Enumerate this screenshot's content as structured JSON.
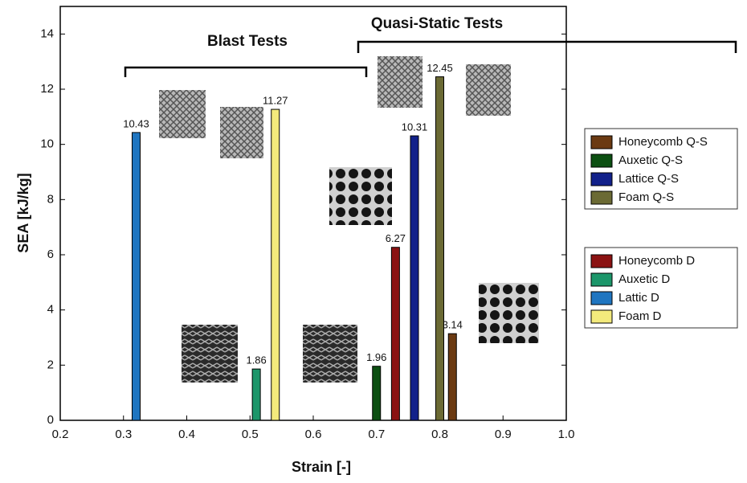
{
  "chart_data": {
    "type": "bar",
    "x_label": "Strain [-]",
    "y_label": "SEA [kJ/kg]",
    "annotations": [
      "Blast Tests",
      "Quasi-Static Tests"
    ],
    "xlim": [
      0.2,
      1.0
    ],
    "xticks": [
      0.2,
      0.3,
      0.4,
      0.5,
      0.6,
      0.7,
      0.8,
      0.9,
      {
        "value": 1.0,
        "label": "1.0"
      }
    ],
    "ylim": [
      0,
      15
    ],
    "yticks": [
      0,
      2,
      4,
      6,
      8,
      10,
      12,
      14
    ],
    "series": [
      {
        "name": "Honeycomb Q-S",
        "color": "#6b3a12",
        "x": [
          0.82
        ],
        "values": [
          3.14
        ]
      },
      {
        "name": "Auxetic Q-S",
        "color": "#0c4f12",
        "x": [
          0.7
        ],
        "values": [
          1.96
        ]
      },
      {
        "name": "Lattice Q-S",
        "color": "#12218a",
        "x": [
          0.76
        ],
        "values": [
          10.31
        ]
      },
      {
        "name": "Foam Q-S",
        "color": "#6b6a34",
        "x": [
          0.8
        ],
        "values": [
          12.45
        ]
      },
      {
        "name": "Honeycomb D",
        "color": "#8b1212",
        "x": [
          0.73
        ],
        "values": [
          6.27
        ]
      },
      {
        "name": "Auxetic D",
        "color": "#1c966a",
        "x": [
          0.51
        ],
        "values": [
          1.86
        ]
      },
      {
        "name": "Lattic D",
        "color": "#1f75c0",
        "x": [
          0.32
        ],
        "values": [
          10.43
        ]
      },
      {
        "name": "Foam D",
        "color": "#f3ea7c",
        "x": [
          0.54
        ],
        "values": [
          11.27
        ]
      }
    ]
  }
}
